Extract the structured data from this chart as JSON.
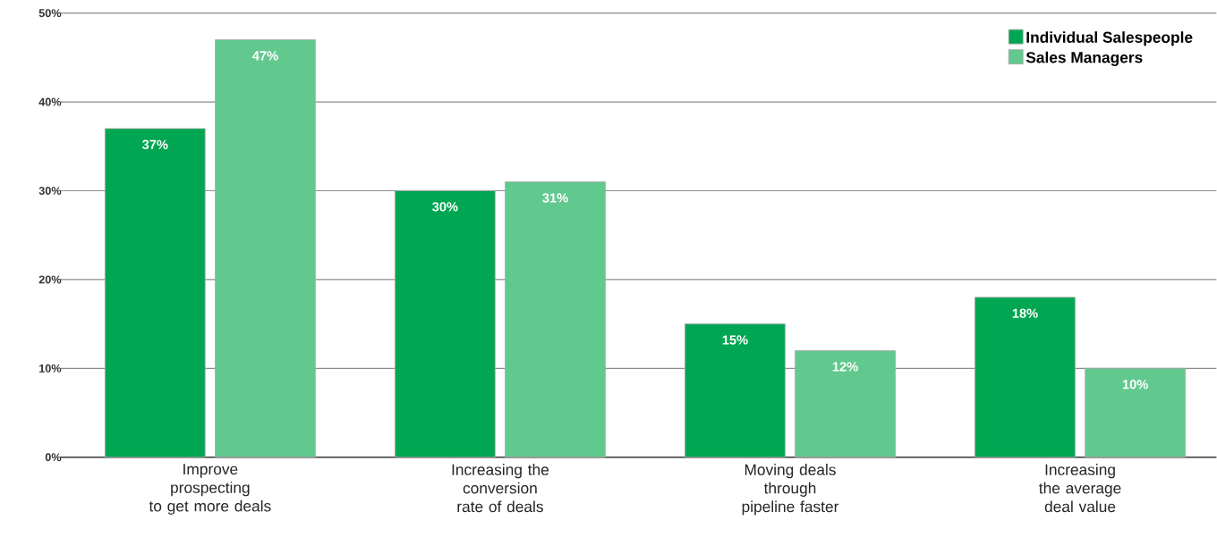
{
  "chart_data": {
    "type": "bar",
    "categories": [
      "Improve prospecting to get more deals",
      "Increasing the conversion rate of deals",
      "Moving deals through pipeline faster",
      "Increasing the average deal value"
    ],
    "series": [
      {
        "name": "Individual Salespeople",
        "color": "#00a651",
        "values": [
          37,
          30,
          15,
          18
        ],
        "value_labels": [
          "37%",
          "30%",
          "15%",
          "18%"
        ]
      },
      {
        "name": "Sales Managers",
        "color": "#62c98e",
        "values": [
          47,
          31,
          12,
          10
        ],
        "value_labels": [
          "47%",
          "31%",
          "12%",
          "10%"
        ]
      }
    ],
    "ylim": [
      0,
      50
    ],
    "yticks": [
      {
        "value": 0,
        "label": "0%"
      },
      {
        "value": 10,
        "label": "10%"
      },
      {
        "value": 20,
        "label": "20%"
      },
      {
        "value": 30,
        "label": "30%"
      },
      {
        "value": 40,
        "label": "40%"
      },
      {
        "value": 50,
        "label": "50%"
      }
    ],
    "grid": "y",
    "legend": "top right"
  }
}
